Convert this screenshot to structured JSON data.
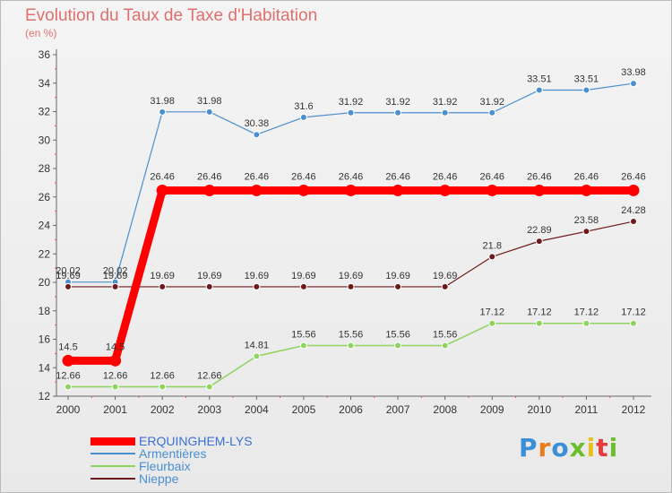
{
  "chart_data": {
    "type": "line",
    "title": "Evolution du Taux de Taxe d'Habitation",
    "subtitle": "(en %)",
    "x": [
      "2000",
      "2001",
      "2002",
      "2003",
      "2004",
      "2005",
      "2006",
      "2007",
      "2008",
      "2009",
      "2010",
      "2011",
      "2012"
    ],
    "ylim": [
      12,
      36
    ],
    "yticks": [
      12,
      14,
      16,
      18,
      20,
      22,
      24,
      26,
      28,
      30,
      32,
      34,
      36
    ],
    "grid": false,
    "legend": "bottom-left",
    "series": [
      {
        "name": "ERQUINGHEM-LYS",
        "color": "#ff0000",
        "width": 9,
        "values": [
          14.5,
          14.5,
          26.46,
          26.46,
          26.46,
          26.46,
          26.46,
          26.46,
          26.46,
          26.46,
          26.46,
          26.46,
          26.46
        ],
        "labels": [
          "14.5",
          "14.5",
          "26.46",
          "26.46",
          "26.46",
          "26.46",
          "26.46",
          "26.46",
          "26.46",
          "26.46",
          "26.46",
          "26.46",
          "26.46"
        ]
      },
      {
        "name": "Armentières",
        "color": "#4a8fd0",
        "width": 1.2,
        "values": [
          20.02,
          20.02,
          31.98,
          31.98,
          30.38,
          31.6,
          31.92,
          31.92,
          31.92,
          31.92,
          33.51,
          33.51,
          33.98
        ],
        "labels": [
          "20.02",
          "20.02",
          "31.98",
          "31.98",
          "30.38",
          "31.6",
          "31.92",
          "31.92",
          "31.92",
          "31.92",
          "33.51",
          "33.51",
          "33.98"
        ]
      },
      {
        "name": "Fleurbaix",
        "color": "#8ed45e",
        "width": 1.5,
        "values": [
          12.66,
          12.66,
          12.66,
          12.66,
          14.81,
          15.56,
          15.56,
          15.56,
          15.56,
          17.12,
          17.12,
          17.12,
          17.12
        ],
        "labels": [
          "12.66",
          "12.66",
          "12.66",
          "12.66",
          "14.81",
          "15.56",
          "15.56",
          "15.56",
          "15.56",
          "17.12",
          "17.12",
          "17.12",
          "17.12"
        ]
      },
      {
        "name": "Nieppe",
        "color": "#6e1a1a",
        "width": 1.2,
        "values": [
          19.69,
          19.69,
          19.69,
          19.69,
          19.69,
          19.69,
          19.69,
          19.69,
          19.69,
          21.8,
          22.89,
          23.58,
          24.28
        ],
        "labels": [
          "19.69",
          "19.69",
          "19.69",
          "19.69",
          "19.69",
          "19.69",
          "19.69",
          "19.69",
          "19.69",
          "21.8",
          "22.89",
          "23.58",
          "24.28"
        ]
      }
    ]
  },
  "brand": {
    "letters": [
      "P",
      "r",
      "o",
      "x",
      "i",
      "t",
      "i"
    ],
    "colors": [
      "#3b8fd6",
      "#e87c1e",
      "#3b8fd6",
      "#6bbf2e",
      "#e8c01e",
      "#e83b3b",
      "#6bbf2e"
    ]
  }
}
